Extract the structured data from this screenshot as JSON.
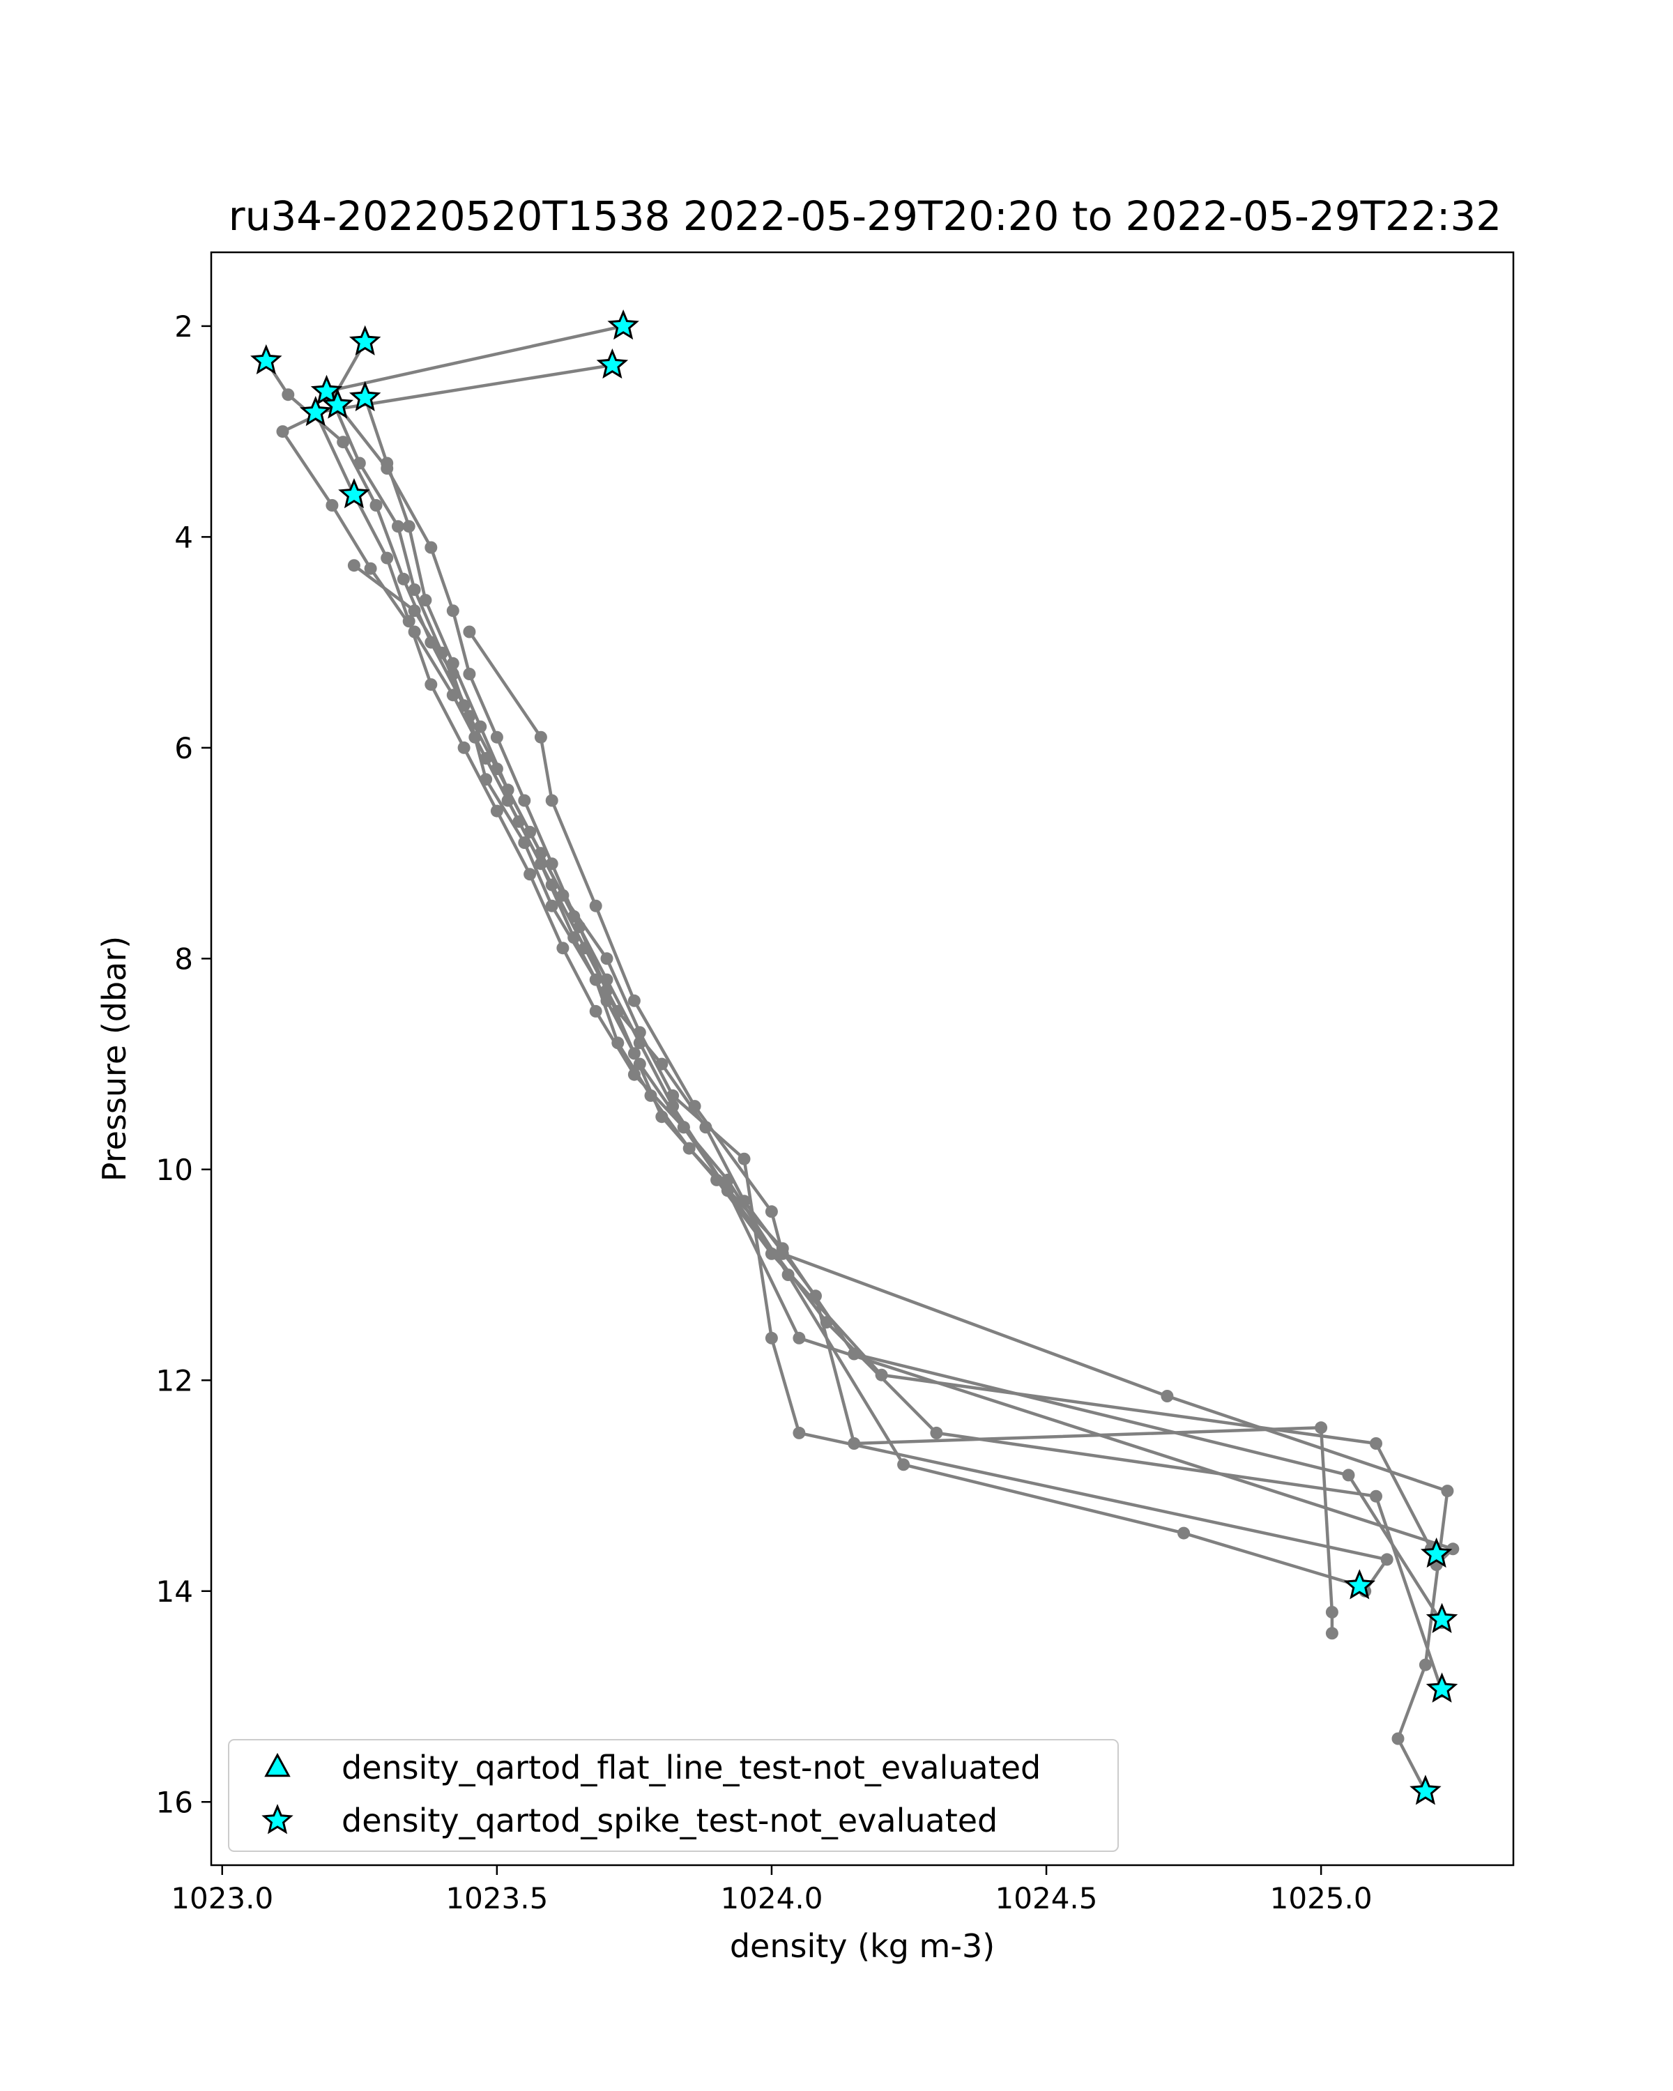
{
  "chart_data": {
    "type": "line",
    "title": "ru34-20220520T1538 2022-05-29T20:20 to 2022-05-29T22:32",
    "xlabel": "density (kg m-3)",
    "ylabel": "Pressure (dbar)",
    "xlim": [
      1022.98,
      1025.35
    ],
    "ylim": [
      1.3,
      16.6
    ],
    "y_inverted": true,
    "x_ticks": [
      1023.0,
      1023.5,
      1024.0,
      1024.5,
      1025.0
    ],
    "x_tick_labels": [
      "1023.0",
      "1023.5",
      "1024.0",
      "1024.5",
      "1025.0"
    ],
    "y_ticks": [
      2,
      4,
      6,
      8,
      10,
      12,
      14,
      16
    ],
    "y_tick_labels": [
      "2",
      "4",
      "6",
      "8",
      "10",
      "12",
      "14",
      "16"
    ],
    "grid": false,
    "legend_position": "lower-left",
    "line_color": "#808080",
    "marker_color": "#00ffff",
    "profiles": [
      {
        "points": [
          [
            1023.73,
            2.0
          ],
          [
            1023.19,
            2.62
          ],
          [
            1023.3,
            3.35
          ],
          [
            1023.38,
            4.1
          ],
          [
            1023.42,
            4.7
          ],
          [
            1023.45,
            5.3
          ],
          [
            1023.5,
            5.9
          ],
          [
            1023.55,
            6.5
          ],
          [
            1023.6,
            7.1
          ],
          [
            1023.65,
            7.7
          ],
          [
            1023.7,
            8.3
          ],
          [
            1023.75,
            8.9
          ],
          [
            1023.8,
            9.5
          ],
          [
            1023.9,
            10.1
          ],
          [
            1024.0,
            10.8
          ],
          [
            1024.2,
            11.95
          ],
          [
            1025.1,
            12.6
          ],
          [
            1025.2,
            13.6
          ]
        ]
      },
      {
        "points": [
          [
            1023.26,
            2.15
          ],
          [
            1023.2,
            2.7
          ],
          [
            1023.25,
            3.3
          ],
          [
            1023.32,
            3.9
          ],
          [
            1023.35,
            4.5
          ],
          [
            1023.4,
            5.1
          ],
          [
            1023.45,
            5.7
          ],
          [
            1023.48,
            6.3
          ],
          [
            1023.55,
            6.9
          ],
          [
            1023.6,
            7.5
          ],
          [
            1023.68,
            8.2
          ],
          [
            1023.72,
            8.8
          ],
          [
            1023.78,
            9.3
          ],
          [
            1023.85,
            9.8
          ],
          [
            1024.02,
            10.75
          ],
          [
            1024.15,
            11.75
          ],
          [
            1025.05,
            12.9
          ],
          [
            1025.22,
            14.3
          ]
        ]
      },
      {
        "points": [
          [
            1023.71,
            2.37
          ],
          [
            1023.17,
            2.82
          ],
          [
            1023.24,
            3.6
          ],
          [
            1023.3,
            4.2
          ],
          [
            1023.34,
            4.8
          ],
          [
            1023.38,
            5.4
          ],
          [
            1023.44,
            6.0
          ],
          [
            1023.5,
            6.6
          ],
          [
            1023.56,
            7.2
          ],
          [
            1023.62,
            7.9
          ],
          [
            1023.68,
            8.5
          ],
          [
            1023.75,
            9.1
          ],
          [
            1023.84,
            9.6
          ],
          [
            1023.92,
            10.2
          ],
          [
            1024.1,
            11.45
          ],
          [
            1024.3,
            12.5
          ],
          [
            1025.1,
            13.1
          ],
          [
            1025.22,
            14.95
          ]
        ]
      },
      {
        "points": [
          [
            1023.26,
            2.68
          ],
          [
            1023.3,
            3.3
          ],
          [
            1023.34,
            3.9
          ],
          [
            1023.37,
            4.6
          ],
          [
            1023.42,
            5.2
          ],
          [
            1023.47,
            5.8
          ],
          [
            1023.52,
            6.4
          ],
          [
            1023.58,
            7.0
          ],
          [
            1023.64,
            7.6
          ],
          [
            1023.7,
            8.2
          ],
          [
            1023.76,
            8.8
          ],
          [
            1023.82,
            9.4
          ],
          [
            1023.92,
            10.2
          ],
          [
            1024.05,
            11.6
          ],
          [
            1025.24,
            13.6
          ],
          [
            1025.21,
            13.75
          ]
        ]
      },
      {
        "points": [
          [
            1023.08,
            2.33
          ],
          [
            1023.12,
            2.65
          ],
          [
            1023.22,
            3.1
          ],
          [
            1023.28,
            3.7
          ],
          [
            1023.33,
            4.4
          ],
          [
            1023.38,
            5.0
          ],
          [
            1023.44,
            5.6
          ],
          [
            1023.5,
            6.2
          ],
          [
            1023.56,
            6.8
          ],
          [
            1023.62,
            7.4
          ],
          [
            1023.7,
            8.0
          ],
          [
            1023.76,
            8.7
          ],
          [
            1023.82,
            9.3
          ],
          [
            1023.95,
            9.9
          ],
          [
            1024.0,
            11.6
          ],
          [
            1024.05,
            12.5
          ],
          [
            1025.12,
            13.7
          ],
          [
            1025.08,
            14.0
          ]
        ]
      },
      {
        "points": [
          [
            1023.21,
            2.75
          ],
          [
            1023.11,
            3.0
          ],
          [
            1023.2,
            3.7
          ],
          [
            1023.27,
            4.3
          ],
          [
            1023.35,
            4.9
          ],
          [
            1023.42,
            5.5
          ],
          [
            1023.48,
            6.1
          ],
          [
            1023.54,
            6.7
          ],
          [
            1023.6,
            7.3
          ],
          [
            1023.66,
            7.9
          ],
          [
            1023.72,
            8.5
          ],
          [
            1023.8,
            9.0
          ],
          [
            1023.88,
            9.6
          ],
          [
            1023.95,
            10.3
          ],
          [
            1024.08,
            11.2
          ],
          [
            1024.15,
            12.6
          ],
          [
            1025.0,
            12.45
          ],
          [
            1025.02,
            14.2
          ],
          [
            1025.02,
            14.4
          ]
        ]
      },
      {
        "points": [
          [
            1023.24,
            4.27
          ],
          [
            1023.35,
            4.7
          ],
          [
            1023.42,
            5.3
          ],
          [
            1023.46,
            5.9
          ],
          [
            1023.52,
            6.5
          ],
          [
            1023.58,
            7.1
          ],
          [
            1023.64,
            7.8
          ],
          [
            1023.7,
            8.4
          ],
          [
            1023.76,
            9.0
          ],
          [
            1023.84,
            9.6
          ],
          [
            1023.92,
            10.1
          ],
          [
            1024.03,
            11.0
          ],
          [
            1024.24,
            12.8
          ],
          [
            1024.75,
            13.45
          ],
          [
            1025.07,
            13.95
          ]
        ]
      },
      {
        "points": [
          [
            1023.45,
            4.9
          ],
          [
            1023.58,
            5.9
          ],
          [
            1023.6,
            6.5
          ],
          [
            1023.68,
            7.5
          ],
          [
            1023.75,
            8.4
          ],
          [
            1023.86,
            9.4
          ],
          [
            1024.0,
            10.4
          ],
          [
            1024.02,
            10.8
          ],
          [
            1024.72,
            12.15
          ],
          [
            1025.23,
            13.05
          ],
          [
            1025.19,
            14.7
          ],
          [
            1025.14,
            15.4
          ],
          [
            1025.19,
            15.9
          ]
        ]
      }
    ],
    "qartod_flags": {
      "flat_line_not_evaluated": [],
      "spike_not_evaluated": [
        [
          1023.73,
          2.0
        ],
        [
          1023.26,
          2.15
        ],
        [
          1023.08,
          2.33
        ],
        [
          1023.71,
          2.37
        ],
        [
          1023.19,
          2.62
        ],
        [
          1023.26,
          2.68
        ],
        [
          1023.21,
          2.75
        ],
        [
          1023.17,
          2.82
        ],
        [
          1023.24,
          3.6
        ],
        [
          1025.21,
          13.65
        ],
        [
          1025.07,
          13.95
        ],
        [
          1025.22,
          14.27
        ],
        [
          1025.22,
          14.93
        ],
        [
          1025.19,
          15.9
        ]
      ]
    },
    "legend": [
      {
        "label": "density_qartod_flat_line_test-not_evaluated",
        "marker": "triangle"
      },
      {
        "label": "density_qartod_spike_test-not_evaluated",
        "marker": "star"
      }
    ]
  }
}
